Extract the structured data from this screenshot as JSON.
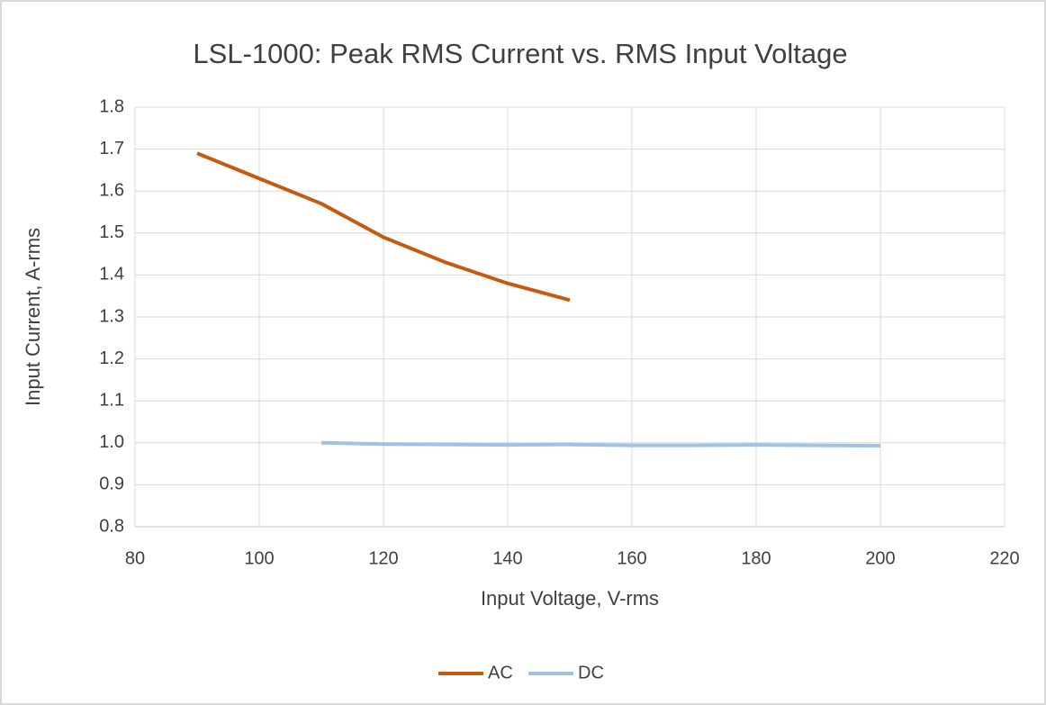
{
  "chart_data": {
    "type": "line",
    "title": "LSL-1000: Peak RMS Current vs. RMS Input Voltage",
    "x_label": "Input Voltage, V-rms",
    "y_label": "Input Current, A-rms",
    "x": [
      90,
      100,
      110,
      120,
      130,
      140,
      150,
      160,
      170,
      180,
      190,
      200
    ],
    "series": [
      {
        "name": "AC",
        "color": "#c55a11",
        "values": [
          1.69,
          1.63,
          1.57,
          1.49,
          1.43,
          1.38,
          1.34,
          null,
          null,
          null,
          null,
          null
        ]
      },
      {
        "name": "DC",
        "color": "#9dc3e6",
        "values": [
          null,
          null,
          1.0,
          0.997,
          0.996,
          0.995,
          0.996,
          0.994,
          0.994,
          0.995,
          0.994,
          0.993
        ]
      }
    ],
    "xlim": [
      80,
      220
    ],
    "xticks": [
      80,
      100,
      120,
      140,
      160,
      180,
      200,
      220
    ],
    "ylim": [
      0.8,
      1.8
    ],
    "yticks": [
      0.8,
      0.9,
      {
        "value": 1,
        "label": "1.0"
      },
      1.1,
      1.2,
      1.3,
      1.4,
      1.5,
      1.6,
      1.7,
      1.8
    ],
    "grid": true,
    "legend": "bottom"
  }
}
